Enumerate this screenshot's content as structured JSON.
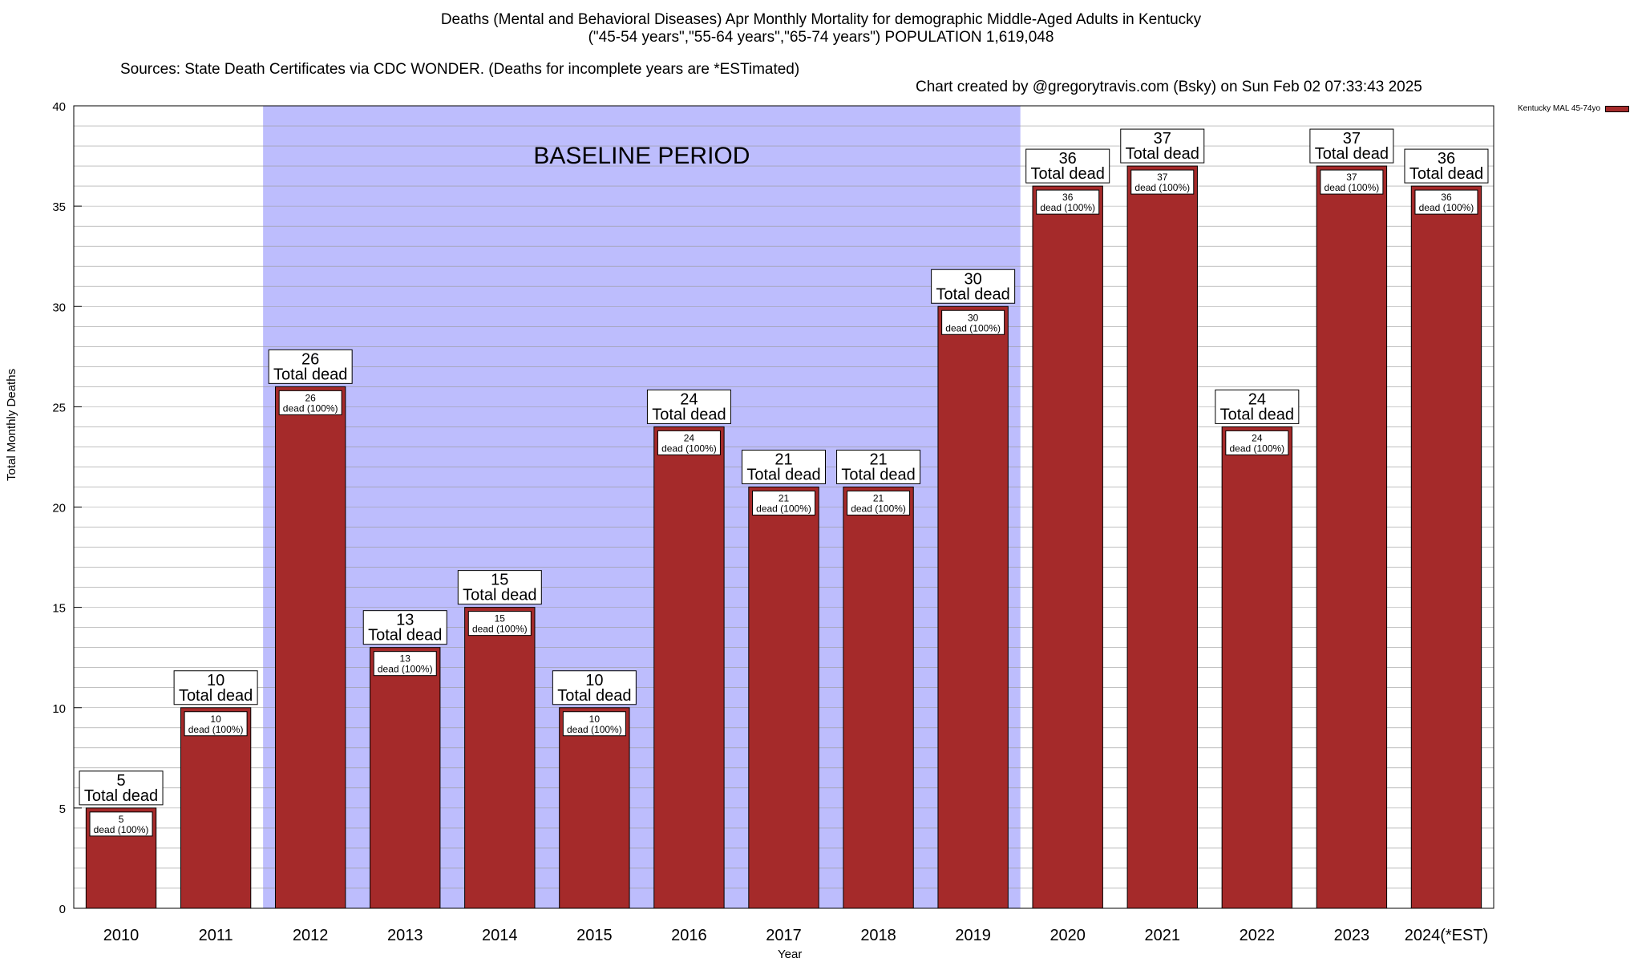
{
  "header": {
    "title_line1": "Deaths (Mental and Behavioral Diseases) Apr Monthly Mortality for demographic Middle-Aged Adults in Kentucky",
    "title_line2": "(\"45-54 years\",\"55-64 years\",\"65-74 years\") POPULATION 1,619,048",
    "sources": "Sources: State Death Certificates via CDC WONDER. (Deaths for incomplete years are *ESTimated)",
    "credit": "Chart created by @gregorytravis.com (Bsky) on Sun Feb 02 07:33:43 2025"
  },
  "chart_data": {
    "type": "bar",
    "xlabel": "Year",
    "ylabel": "Total Monthly Deaths",
    "ylim": [
      0,
      40
    ],
    "yticks": [
      0,
      5,
      10,
      15,
      20,
      25,
      30,
      35,
      40
    ],
    "grid": true,
    "legend_position": "top-right",
    "categories": [
      "2010",
      "2011",
      "2012",
      "2013",
      "2014",
      "2015",
      "2016",
      "2017",
      "2018",
      "2019",
      "2020",
      "2021",
      "2022",
      "2023",
      "2024(*EST)"
    ],
    "series": [
      {
        "name": "Kentucky MAL 45-74yo",
        "values": [
          5,
          10,
          26,
          13,
          15,
          10,
          24,
          21,
          21,
          30,
          36,
          37,
          24,
          37,
          36
        ],
        "color": "#a52a2a"
      }
    ],
    "top_label_suffix": "Total dead",
    "inner_label_suffix": "dead (100%)",
    "baseline_period": {
      "label": "BASELINE PERIOD",
      "start_category": "2012",
      "end_category": "2019",
      "color": "#bdbdfd"
    }
  }
}
